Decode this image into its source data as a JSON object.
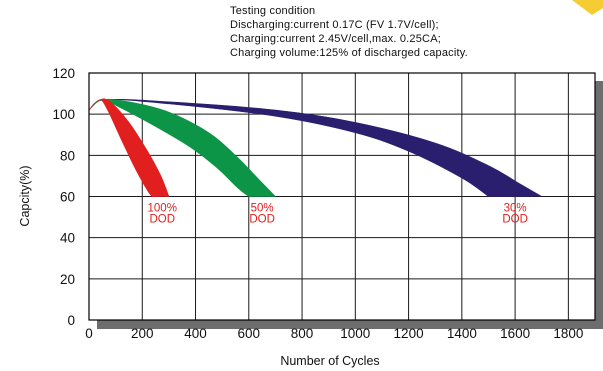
{
  "testing_condition": [
    "Testing condition",
    "Discharging:current 0.17C (FV 1.7V/cell);",
    "Charging:current 2.45V/cell,max. 0.25CA;",
    "Charging volume:125% of discharged capacity."
  ],
  "chart_data": {
    "type": "area",
    "xlabel": "Number of Cycles",
    "ylabel": "Capcity(%)",
    "xlim": [
      0,
      1900
    ],
    "ylim": [
      0,
      120
    ],
    "xticks": [
      "0",
      "200",
      "400",
      "600",
      "800",
      "1000",
      "1200",
      "1400",
      "1600",
      "1800"
    ],
    "yticks": [
      "0",
      "20",
      "40",
      "60",
      "80",
      "100",
      "120"
    ],
    "grid": true,
    "series": [
      {
        "name": "100% DOD",
        "label_lines": [
          "100%",
          "DOD"
        ],
        "color": "#e11f1f",
        "label_color": "#e11f1f",
        "upper": [
          [
            0,
            102
          ],
          [
            40,
            107
          ],
          [
            80,
            106
          ],
          [
            150,
            96
          ],
          [
            220,
            82
          ],
          [
            270,
            70
          ],
          [
            300,
            60
          ]
        ],
        "lower": [
          [
            0,
            102
          ],
          [
            40,
            107
          ],
          [
            70,
            102
          ],
          [
            120,
            88
          ],
          [
            180,
            72
          ],
          [
            230,
            61
          ],
          [
            250,
            60
          ]
        ]
      },
      {
        "name": "50% DOD",
        "label_lines": [
          "50%",
          "DOD"
        ],
        "color": "#0c9447",
        "label_color": "#e11f1f",
        "upper": [
          [
            0,
            102
          ],
          [
            50,
            107
          ],
          [
            150,
            106
          ],
          [
            300,
            101
          ],
          [
            450,
            91
          ],
          [
            550,
            80
          ],
          [
            640,
            68
          ],
          [
            700,
            60
          ]
        ],
        "lower": [
          [
            0,
            102
          ],
          [
            50,
            107
          ],
          [
            120,
            103
          ],
          [
            250,
            94
          ],
          [
            380,
            84
          ],
          [
            480,
            74
          ],
          [
            560,
            64
          ],
          [
            600,
            60
          ]
        ]
      },
      {
        "name": "30% DOD",
        "label_lines": [
          "30%",
          "DOD"
        ],
        "color": "#2a1f6f",
        "label_color": "#e11f1f",
        "upper": [
          [
            0,
            102
          ],
          [
            60,
            107
          ],
          [
            300,
            106
          ],
          [
            700,
            102
          ],
          [
            1000,
            96
          ],
          [
            1300,
            86
          ],
          [
            1500,
            75
          ],
          [
            1620,
            66
          ],
          [
            1700,
            60
          ]
        ],
        "lower": [
          [
            0,
            102
          ],
          [
            60,
            107
          ],
          [
            300,
            105
          ],
          [
            700,
            99
          ],
          [
            1000,
            91
          ],
          [
            1200,
            82
          ],
          [
            1400,
            69
          ],
          [
            1500,
            60
          ]
        ]
      }
    ]
  },
  "colors": {
    "plot_background": "#ffffff",
    "grid": "#1a1a1a",
    "frame": "#000000",
    "shadow": "#6d6d6d",
    "corner_accent": "#f5cc33"
  }
}
